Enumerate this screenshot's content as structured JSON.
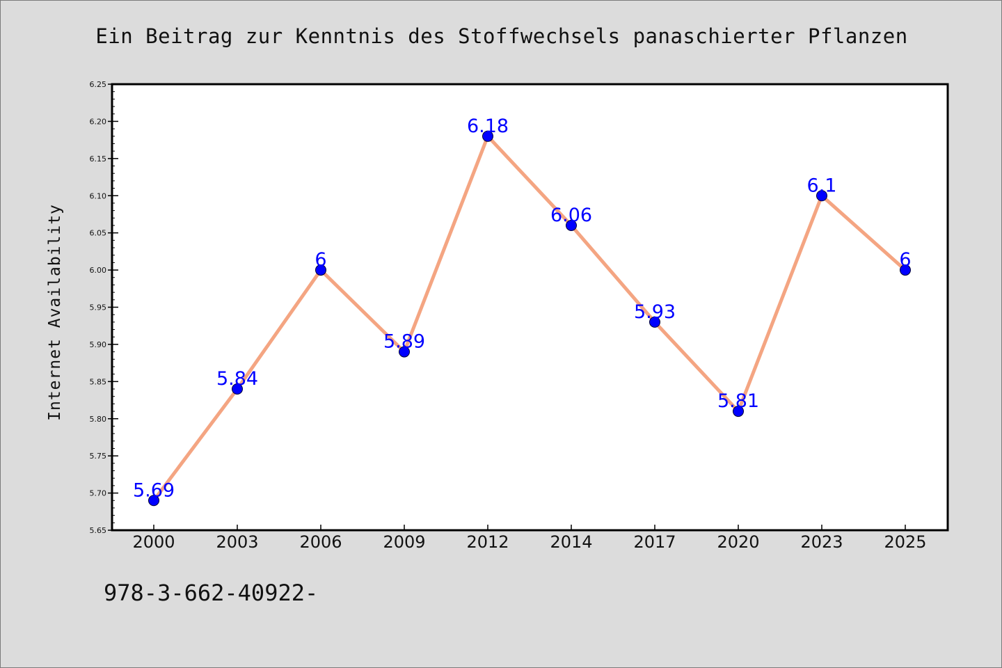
{
  "chart_data": {
    "type": "line",
    "title": "Ein Beitrag zur Kenntnis des Stoffwechsels panaschierter Pflanzen",
    "xlabel": "",
    "ylabel": "Internet Availability",
    "categories": [
      "2000",
      "2003",
      "2006",
      "2009",
      "2012",
      "2014",
      "2017",
      "2020",
      "2023",
      "2025"
    ],
    "series": [
      {
        "values": [
          5.69,
          5.84,
          6.0,
          5.89,
          6.18,
          6.06,
          5.93,
          5.81,
          6.1,
          6.0
        ],
        "data_labels": [
          "5.69",
          "5.84",
          "6",
          "5.89",
          "6.18",
          "6.06",
          "5.93",
          "5.81",
          "6.1",
          "6"
        ]
      }
    ],
    "ylim": [
      5.65,
      6.25
    ],
    "yticks": [
      "5.65",
      "5.70",
      "5.75",
      "5.80",
      "5.85",
      "5.90",
      "5.95",
      "6.00",
      "6.05",
      "6.10",
      "6.15",
      "6.20",
      "6.25"
    ],
    "grid": false,
    "legend": "none"
  },
  "footer": {
    "code": "978-3-662-40922-"
  },
  "colors": {
    "background": "#dcdcdc",
    "plot_background": "#ffffff",
    "line": "#f4a582",
    "marker": "#0000ff",
    "data_label": "#0000ff"
  }
}
